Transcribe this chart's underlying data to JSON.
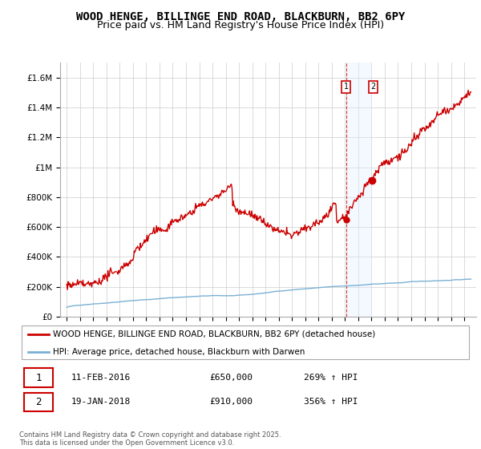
{
  "title": "WOOD HENGE, BILLINGE END ROAD, BLACKBURN, BB2 6PY",
  "subtitle": "Price paid vs. HM Land Registry's House Price Index (HPI)",
  "ylim": [
    0,
    1700000
  ],
  "yticks": [
    0,
    200000,
    400000,
    600000,
    800000,
    1000000,
    1200000,
    1400000,
    1600000
  ],
  "ytick_labels": [
    "£0",
    "£200K",
    "£400K",
    "£600K",
    "£800K",
    "£1M",
    "£1.2M",
    "£1.4M",
    "£1.6M"
  ],
  "hpi_color": "#7ab0d4",
  "property_color": "#cc0000",
  "marker1_year": 2016.12,
  "marker1_price": 650000,
  "marker2_year": 2018.05,
  "marker2_price": 910000,
  "span_color": "#ddeeff",
  "legend_label_property": "WOOD HENGE, BILLINGE END ROAD, BLACKBURN, BB2 6PY (detached house)",
  "legend_label_hpi": "HPI: Average price, detached house, Blackburn with Darwen",
  "footer": "Contains HM Land Registry data © Crown copyright and database right 2025.\nThis data is licensed under the Open Government Licence v3.0.",
  "background_color": "#ffffff",
  "grid_color": "#cccccc",
  "title_fontsize": 10,
  "subtitle_fontsize": 9
}
